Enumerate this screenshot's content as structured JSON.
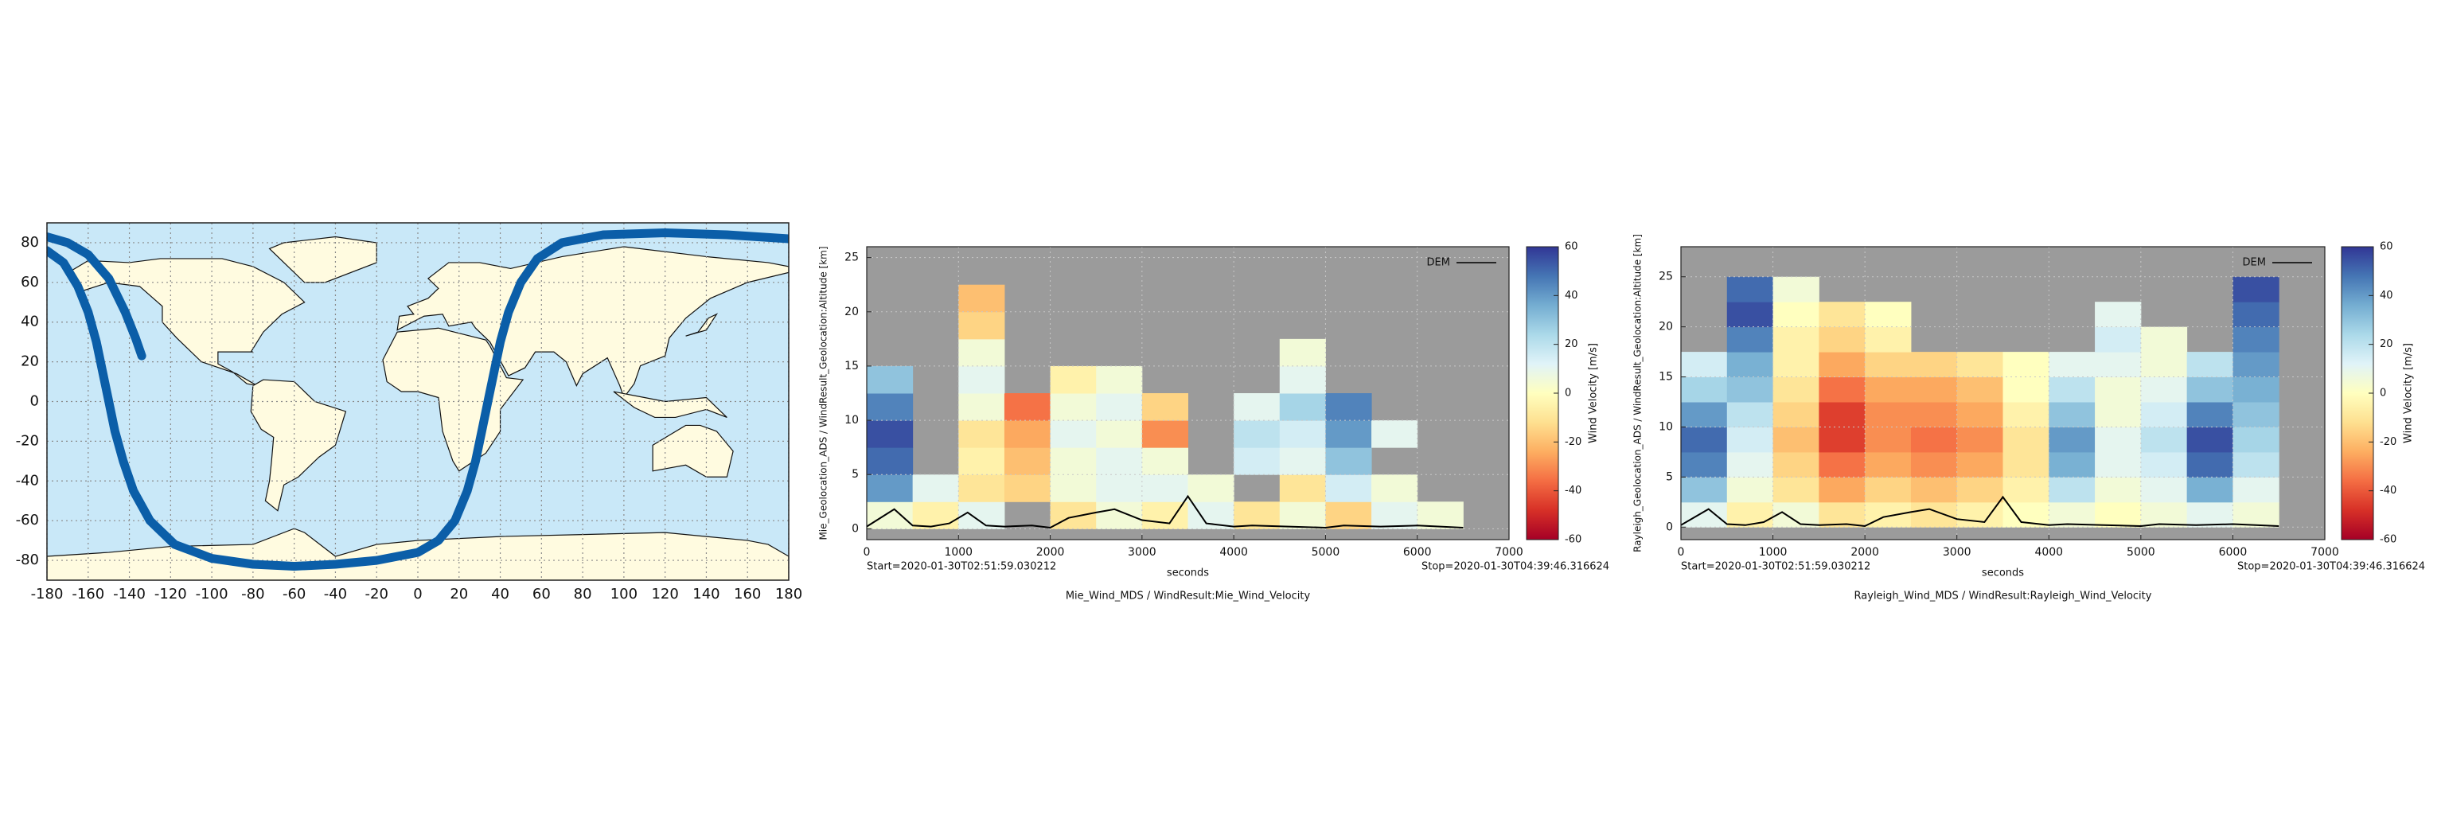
{
  "chart_data": [
    {
      "type": "map",
      "xlim": [
        -180,
        180
      ],
      "ylim": [
        -90,
        90
      ],
      "xticks": [
        -180,
        -160,
        -140,
        -120,
        -100,
        -80,
        -60,
        -40,
        -20,
        0,
        20,
        40,
        60,
        80,
        100,
        120,
        140,
        160,
        180
      ],
      "yticks": [
        -80,
        -60,
        -40,
        -20,
        0,
        20,
        40,
        60,
        80
      ],
      "grid": true,
      "track": {
        "color": "#0b5ea8",
        "x": [
          -180,
          -170,
          -160,
          -150,
          -142,
          -137,
          -134,
          null,
          -180,
          -172,
          -165,
          -160,
          -156,
          -153,
          -150,
          -147,
          -143,
          -138,
          -130,
          -118,
          -100,
          -80,
          -60,
          -40,
          -20,
          0,
          10,
          18,
          24,
          28,
          31,
          34,
          37,
          40,
          44,
          50,
          58,
          70,
          90,
          120,
          150,
          180
        ],
        "values": [
          83,
          80,
          74,
          62,
          45,
          32,
          23,
          null,
          76,
          70,
          58,
          45,
          30,
          15,
          0,
          -15,
          -30,
          -45,
          -60,
          -72,
          -79,
          -82,
          -83,
          -82,
          -80,
          -76,
          -70,
          -60,
          -45,
          -30,
          -15,
          0,
          15,
          30,
          45,
          60,
          72,
          80,
          84,
          85,
          84,
          82
        ]
      }
    },
    {
      "type": "heatmap",
      "xlabel": "seconds",
      "ylabel": "Mie_Geolocation_ADS / WindResult_Geolocation:Altitude [km]",
      "title": "Mie_Wind_MDS / WindResult:Mie_Wind_Velocity",
      "start_label": "Start=2020-01-30T02:51:59.030212",
      "stop_label": "Stop=2020-01-30T04:39:46.316624",
      "xlim": [
        0,
        7000
      ],
      "ylim": [
        -1,
        26
      ],
      "xticks": [
        0,
        1000,
        2000,
        3000,
        4000,
        5000,
        6000,
        7000
      ],
      "yticks": [
        0,
        5,
        10,
        15,
        20,
        25
      ],
      "grid": true,
      "background": "#9b9b9b",
      "xbins": [
        0,
        500,
        1000,
        1500,
        2000,
        2500,
        3000,
        3500,
        4000,
        4500,
        5000,
        5500,
        6000,
        6500
      ],
      "ybins": [
        0,
        2.5,
        5,
        7.5,
        10,
        12.5,
        15,
        17.5,
        20,
        22.5,
        25
      ],
      "z": [
        [
          5,
          -5,
          10,
          null,
          -10,
          5,
          -5,
          10,
          -10,
          5,
          -15,
          10,
          5
        ],
        [
          40,
          10,
          -10,
          -15,
          5,
          10,
          10,
          5,
          null,
          -10,
          15,
          5,
          null
        ],
        [
          50,
          null,
          -5,
          -20,
          5,
          10,
          5,
          null,
          15,
          10,
          30,
          null,
          null
        ],
        [
          55,
          null,
          -10,
          -25,
          10,
          5,
          -30,
          null,
          20,
          15,
          40,
          10,
          null
        ],
        [
          45,
          null,
          5,
          -35,
          5,
          10,
          -15,
          null,
          10,
          25,
          45,
          null,
          null
        ],
        [
          30,
          null,
          10,
          null,
          -5,
          5,
          null,
          null,
          null,
          10,
          null,
          null,
          null
        ],
        [
          null,
          null,
          5,
          null,
          null,
          null,
          null,
          null,
          null,
          5,
          null,
          null,
          null
        ],
        [
          null,
          null,
          -15,
          null,
          null,
          null,
          null,
          null,
          null,
          null,
          null,
          null,
          null
        ],
        [
          null,
          null,
          -20,
          null,
          null,
          null,
          null,
          null,
          null,
          null,
          null,
          null,
          null
        ],
        [
          null,
          null,
          null,
          null,
          null,
          null,
          null,
          null,
          null,
          null,
          null,
          null,
          null
        ]
      ],
      "clim": [
        -60,
        60
      ],
      "cticks": [
        -60,
        -40,
        -20,
        0,
        20,
        40,
        60
      ],
      "clabel": "Wind Velocity [m/s]",
      "colormap": [
        "#a50026",
        "#d73027",
        "#f46d43",
        "#fdae61",
        "#fee090",
        "#ffffbf",
        "#e0f3f8",
        "#abd9e9",
        "#74add1",
        "#4575b4",
        "#313695"
      ],
      "dem": {
        "name": "DEM",
        "color": "#000000",
        "x": [
          0,
          300,
          500,
          700,
          900,
          1100,
          1300,
          1500,
          1800,
          2000,
          2200,
          2500,
          2700,
          3000,
          3300,
          3500,
          3700,
          4000,
          4200,
          4600,
          5000,
          5200,
          5600,
          6000,
          6500
        ],
        "values": [
          0.2,
          1.8,
          0.3,
          0.2,
          0.5,
          1.5,
          0.3,
          0.2,
          0.3,
          0.1,
          1.0,
          1.5,
          1.8,
          0.8,
          0.5,
          3.0,
          0.5,
          0.2,
          0.3,
          0.2,
          0.1,
          0.3,
          0.2,
          0.3,
          0.1
        ]
      }
    },
    {
      "type": "heatmap",
      "xlabel": "seconds",
      "ylabel": "Rayleigh_Geolocation_ADS / WindResult_Geolocation:Altitude [km]",
      "title": "Rayleigh_Wind_MDS / WindResult:Rayleigh_Wind_Velocity",
      "start_label": "Start=2020-01-30T02:51:59.030212",
      "stop_label": "Stop=2020-01-30T04:39:46.316624",
      "xlim": [
        0,
        7000
      ],
      "ylim": [
        -1.25,
        28
      ],
      "xticks": [
        0,
        1000,
        2000,
        3000,
        4000,
        5000,
        6000,
        7000
      ],
      "yticks": [
        0,
        5,
        10,
        15,
        20,
        25
      ],
      "grid": true,
      "background": "#9b9b9b",
      "xbins": [
        0,
        500,
        1000,
        1500,
        2000,
        2500,
        3000,
        3500,
        4000,
        4500,
        5000,
        5500,
        6000,
        6500
      ],
      "ybins": [
        0,
        2.5,
        5,
        7.5,
        10,
        12.5,
        15,
        17.5,
        20,
        22.5,
        25
      ],
      "z": [
        [
          10,
          -5,
          5,
          -10,
          -5,
          -10,
          -5,
          0,
          5,
          0,
          5,
          10,
          5
        ],
        [
          30,
          5,
          -10,
          -25,
          -15,
          -20,
          -15,
          -5,
          20,
          5,
          10,
          35,
          10
        ],
        [
          45,
          10,
          -15,
          -35,
          -25,
          -30,
          -25,
          -10,
          35,
          10,
          15,
          50,
          20
        ],
        [
          50,
          15,
          -20,
          -45,
          -30,
          -35,
          -30,
          -10,
          40,
          10,
          20,
          55,
          25
        ],
        [
          40,
          20,
          -15,
          -45,
          -30,
          -30,
          -25,
          -5,
          30,
          5,
          15,
          45,
          30
        ],
        [
          25,
          30,
          -10,
          -35,
          -25,
          -25,
          -20,
          0,
          20,
          5,
          10,
          30,
          35
        ],
        [
          15,
          35,
          -5,
          -25,
          -15,
          -15,
          -10,
          0,
          10,
          10,
          5,
          20,
          40
        ],
        [
          null,
          45,
          -5,
          -15,
          -5,
          null,
          null,
          null,
          null,
          15,
          5,
          null,
          45
        ],
        [
          null,
          55,
          0,
          -10,
          0,
          null,
          null,
          null,
          null,
          10,
          null,
          null,
          50
        ],
        [
          null,
          50,
          5,
          null,
          null,
          null,
          null,
          null,
          null,
          null,
          null,
          null,
          55
        ]
      ],
      "clim": [
        -60,
        60
      ],
      "cticks": [
        -60,
        -40,
        -20,
        0,
        20,
        40,
        60
      ],
      "clabel": "Wind Velocity [m/s]",
      "colormap": [
        "#a50026",
        "#d73027",
        "#f46d43",
        "#fdae61",
        "#fee090",
        "#ffffbf",
        "#e0f3f8",
        "#abd9e9",
        "#74add1",
        "#4575b4",
        "#313695"
      ],
      "dem": {
        "name": "DEM",
        "color": "#000000",
        "x": [
          0,
          300,
          500,
          700,
          900,
          1100,
          1300,
          1500,
          1800,
          2000,
          2200,
          2500,
          2700,
          3000,
          3300,
          3500,
          3700,
          4000,
          4200,
          4600,
          5000,
          5200,
          5600,
          6000,
          6500
        ],
        "values": [
          0.2,
          1.8,
          0.3,
          0.2,
          0.5,
          1.5,
          0.3,
          0.2,
          0.3,
          0.1,
          1.0,
          1.5,
          1.8,
          0.8,
          0.5,
          3.0,
          0.5,
          0.2,
          0.3,
          0.2,
          0.1,
          0.3,
          0.2,
          0.3,
          0.1
        ]
      }
    }
  ]
}
